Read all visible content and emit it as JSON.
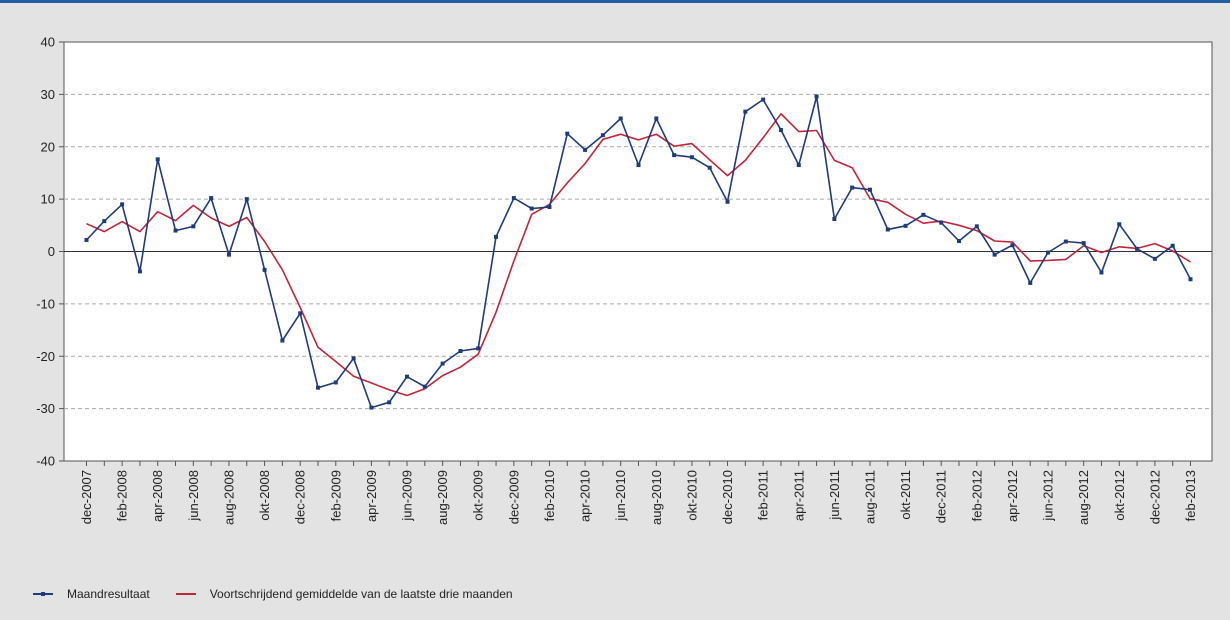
{
  "chart_data": {
    "type": "line",
    "ylim": [
      -40,
      40
    ],
    "yticks": [
      -40,
      -30,
      -20,
      -10,
      0,
      10,
      20,
      30,
      40
    ],
    "grid": true,
    "legend_position": "bottom-left",
    "x_start": "2007-12",
    "x_end": "2013-02",
    "x_tick_labels": [
      "dec-2007",
      "feb-2008",
      "apr-2008",
      "jun-2008",
      "aug-2008",
      "okt-2008",
      "dec-2008",
      "feb-2009",
      "apr-2009",
      "jun-2009",
      "aug-2009",
      "okt-2009",
      "dec-2009",
      "feb-2010",
      "apr-2010",
      "jun-2010",
      "aug-2010",
      "okt-2010",
      "dec-2010",
      "feb-2011",
      "apr-2011",
      "jun-2011",
      "aug-2011",
      "okt-2011",
      "dec-2011",
      "feb-2012",
      "apr-2012",
      "jun-2012",
      "aug-2012",
      "okt-2012",
      "dec-2012",
      "feb-2013"
    ],
    "series": [
      {
        "name": "Maandresultaat",
        "color": "#1f3b7a",
        "marker": "square",
        "values": [
          2.2,
          5.8,
          9.0,
          -3.8,
          17.6,
          4.0,
          4.8,
          10.2,
          -0.6,
          10.0,
          -3.5,
          -17.0,
          -11.8,
          -26.0,
          -25.0,
          -20.4,
          -29.8,
          -28.8,
          -23.9,
          -25.8,
          -21.4,
          -19.0,
          -18.5,
          2.8,
          10.2,
          8.2,
          8.5,
          22.5,
          19.4,
          22.2,
          25.4,
          16.5,
          25.4,
          18.4,
          18.0,
          16.0,
          9.5,
          26.7,
          29.0,
          23.2,
          16.5,
          29.6,
          6.2,
          12.2,
          11.8,
          4.2,
          4.9,
          7.0,
          5.5,
          2.0,
          4.8,
          -0.6,
          1.2,
          -6.0,
          -0.2,
          1.9,
          1.6,
          -4.0,
          5.2,
          0.5,
          -1.4,
          1.1,
          -5.3
        ]
      },
      {
        "name": "Voortschrijdend gemiddelde van de laatste drie maanden",
        "color": "#c0263a",
        "marker": "none",
        "values": [
          5.3,
          3.8,
          5.7,
          3.8,
          7.6,
          5.9,
          8.8,
          6.4,
          4.8,
          6.5,
          1.9,
          -3.5,
          -10.7,
          -18.3,
          -21.0,
          -23.8,
          -25.1,
          -26.4,
          -27.5,
          -26.2,
          -23.7,
          -22.1,
          -19.6,
          -11.6,
          -1.8,
          7.1,
          9.0,
          13.1,
          16.8,
          21.4,
          22.4,
          21.3,
          22.4,
          20.1,
          20.6,
          17.5,
          14.5,
          17.4,
          21.7,
          26.3,
          22.9,
          23.1,
          17.4,
          16.0,
          10.1,
          9.4,
          7.1,
          5.4,
          5.8,
          5.0,
          4.0,
          2.0,
          1.8,
          -1.8,
          -1.7,
          -1.5,
          1.1,
          -0.2,
          0.9,
          0.6,
          1.5,
          0.1,
          -2.0
        ]
      }
    ]
  }
}
